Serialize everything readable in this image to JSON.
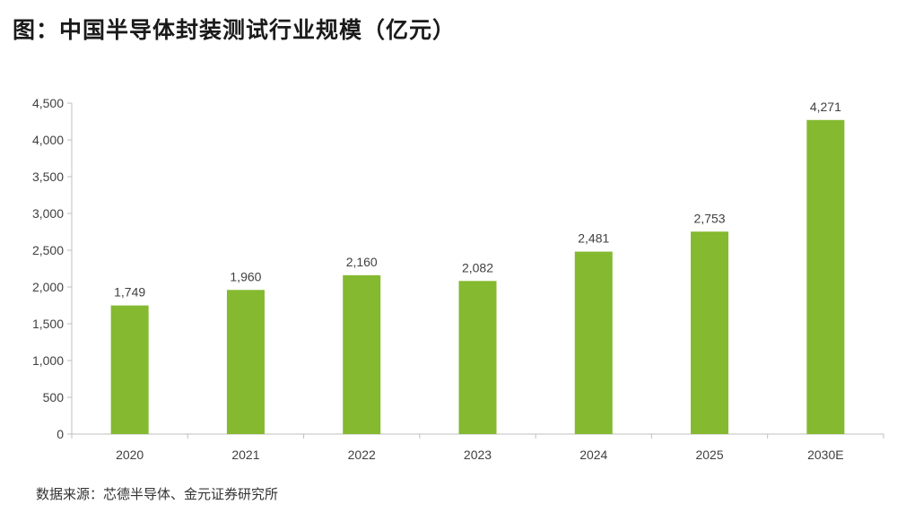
{
  "title": "图：中国半导体封装测试行业规模（亿元）",
  "source": "数据来源：芯德半导体、金元证券研究所",
  "chart_data": {
    "type": "bar",
    "title": "图：中国半导体封装测试行业规模（亿元）",
    "xlabel": "",
    "ylabel": "",
    "categories": [
      "2020",
      "2021",
      "2022",
      "2023",
      "2024",
      "2025",
      "2030E"
    ],
    "values": [
      1749,
      1960,
      2160,
      2082,
      2481,
      2753,
      4271
    ],
    "value_labels": [
      "1,749",
      "1,960",
      "2,160",
      "2,082",
      "2,481",
      "2,753",
      "4,271"
    ],
    "ylim": [
      0,
      4500
    ],
    "yticks": [
      0,
      500,
      1000,
      1500,
      2000,
      2500,
      3000,
      3500,
      4000,
      4500
    ],
    "ytick_labels": [
      "0",
      "500",
      "1,000",
      "1,500",
      "2,000",
      "2,500",
      "3,000",
      "3,500",
      "4,000",
      "4,500"
    ],
    "grid": false,
    "legend": "none",
    "bar_color": "#84b930",
    "axis_color": "#bfbfbf",
    "label_color": "#404040"
  }
}
